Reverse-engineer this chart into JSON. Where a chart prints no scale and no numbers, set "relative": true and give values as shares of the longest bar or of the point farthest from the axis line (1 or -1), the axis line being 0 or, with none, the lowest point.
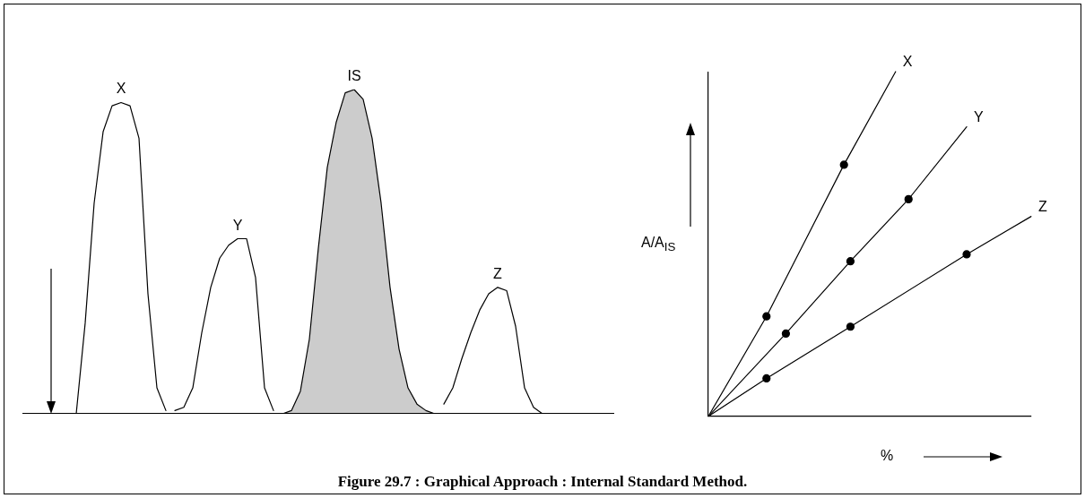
{
  "chart_data": [
    {
      "type": "line",
      "relative": true,
      "categories": [
        null,
        null,
        null,
        null,
        null,
        null,
        null,
        null,
        null,
        null,
        null,
        null,
        null,
        null,
        null,
        null,
        null,
        null,
        null,
        null,
        null,
        null,
        null,
        null,
        null,
        null,
        null,
        null,
        null,
        null,
        null,
        null,
        null,
        null,
        null,
        null,
        null,
        null,
        null,
        null,
        null,
        null,
        null,
        null,
        null,
        null,
        null,
        null,
        null,
        null,
        null,
        null,
        null,
        null,
        null,
        null,
        null,
        null,
        null,
        null,
        null,
        null,
        null,
        null,
        null,
        null,
        null
      ],
      "series": [
        {
          "name": "X",
          "type": "line",
          "color": "#000000",
          "values": [
            null,
            null,
            null,
            null,
            null,
            null,
            0,
            0.28,
            0.65,
            0.87,
            0.95,
            0.96,
            0.95,
            0.85,
            0.37,
            0.08,
            0.01,
            null,
            null,
            null,
            null,
            null,
            null,
            null,
            null,
            null,
            null,
            null,
            null,
            null,
            null,
            null,
            null,
            null,
            null,
            null,
            null,
            null,
            null,
            null,
            null,
            null,
            null,
            null,
            null,
            null,
            null,
            null,
            null,
            null,
            null,
            null,
            null,
            null,
            null,
            null,
            null,
            null,
            null,
            null,
            null,
            null,
            null,
            null,
            null,
            null,
            null
          ]
        },
        {
          "name": "Y",
          "type": "line",
          "color": "#000000",
          "values": [
            null,
            null,
            null,
            null,
            null,
            null,
            null,
            null,
            null,
            null,
            null,
            null,
            null,
            null,
            null,
            null,
            null,
            0.01,
            0.02,
            0.08,
            0.25,
            0.39,
            0.48,
            0.52,
            0.54,
            0.54,
            0.42,
            0.08,
            0.01,
            null,
            null,
            null,
            null,
            null,
            null,
            null,
            null,
            null,
            null,
            null,
            null,
            null,
            null,
            null,
            null,
            null,
            null,
            null,
            null,
            null,
            null,
            null,
            null,
            null,
            null,
            null,
            null,
            null,
            null,
            null,
            null,
            null,
            null,
            null,
            null,
            null,
            null
          ]
        },
        {
          "name": "IS",
          "type": "area",
          "color": "#000000",
          "values": [
            null,
            null,
            null,
            null,
            null,
            null,
            null,
            null,
            null,
            null,
            null,
            null,
            null,
            null,
            null,
            null,
            null,
            null,
            null,
            null,
            null,
            null,
            null,
            null,
            null,
            null,
            null,
            null,
            null,
            0,
            0.01,
            0.07,
            0.23,
            0.51,
            0.76,
            0.9,
            0.99,
            1,
            0.97,
            0.85,
            0.65,
            0.39,
            0.2,
            0.08,
            0.03,
            0.01,
            0,
            null,
            null,
            null,
            null,
            null,
            null,
            null,
            null,
            null,
            null,
            null,
            null,
            null,
            null,
            null,
            null,
            null,
            null,
            null,
            null
          ]
        },
        {
          "name": "Z",
          "type": "line",
          "color": "#000000",
          "values": [
            null,
            null,
            null,
            null,
            null,
            null,
            null,
            null,
            null,
            null,
            null,
            null,
            null,
            null,
            null,
            null,
            null,
            null,
            null,
            null,
            null,
            null,
            null,
            null,
            null,
            null,
            null,
            null,
            null,
            null,
            null,
            null,
            null,
            null,
            null,
            null,
            null,
            null,
            null,
            null,
            null,
            null,
            null,
            null,
            null,
            null,
            null,
            0.03,
            0.08,
            0.17,
            0.25,
            0.32,
            0.37,
            0.39,
            0.38,
            0.27,
            0.08,
            0.02,
            0,
            null,
            null,
            null,
            null,
            null,
            null,
            null,
            null
          ]
        }
      ]
    },
    {
      "type": "line",
      "relative": true,
      "ylabel": "A/A$_{IS}$",
      "xlabel": "%",
      "marker": "circle",
      "annotations": [
        "Figure 29.7 : Graphical Approach : Internal Standard Method."
      ],
      "categories": [
        null,
        null,
        null,
        null,
        null,
        null,
        null,
        null,
        null,
        null,
        null,
        null,
        null,
        null,
        null,
        null,
        null,
        null,
        null,
        null,
        null,
        null,
        null,
        null,
        null,
        null,
        null,
        null,
        null,
        null,
        null,
        null,
        null,
        null,
        null,
        null,
        null,
        null,
        null,
        null,
        null,
        null,
        null,
        null,
        null,
        null,
        null,
        null,
        null,
        null,
        null
      ],
      "series": [
        {
          "name": "X",
          "type": "line",
          "color": "#000000",
          "values": [
            0,
            null,
            null,
            null,
            null,
            null,
            null,
            null,
            null,
            0.29,
            null,
            null,
            null,
            null,
            null,
            null,
            null,
            null,
            null,
            null,
            null,
            0.73,
            null,
            null,
            null,
            null,
            null,
            null,
            null,
            1.0,
            null,
            null,
            null,
            null,
            null,
            null,
            null,
            null,
            null,
            null,
            null,
            null,
            null,
            null,
            null,
            null,
            null,
            null,
            null,
            null,
            null
          ]
        },
        {
          "name": "Y",
          "type": "line",
          "color": "#000000",
          "values": [
            0,
            null,
            null,
            null,
            null,
            null,
            null,
            null,
            null,
            null,
            null,
            null,
            0.24,
            null,
            null,
            null,
            null,
            null,
            null,
            null,
            null,
            null,
            0.45,
            null,
            null,
            null,
            null,
            null,
            null,
            null,
            null,
            0.63,
            null,
            null,
            null,
            null,
            null,
            null,
            null,
            null,
            0.84,
            null,
            null,
            null,
            null,
            null,
            null,
            null,
            null,
            null,
            null
          ]
        },
        {
          "name": "Z",
          "type": "line",
          "color": "#000000",
          "values": [
            0,
            null,
            null,
            null,
            null,
            null,
            null,
            null,
            null,
            0.11,
            null,
            null,
            null,
            null,
            null,
            null,
            null,
            null,
            null,
            null,
            null,
            null,
            0.26,
            null,
            null,
            null,
            null,
            null,
            null,
            null,
            null,
            null,
            null,
            null,
            null,
            null,
            null,
            null,
            null,
            null,
            0.47,
            null,
            null,
            null,
            null,
            null,
            null,
            null,
            null,
            null,
            0.58
          ]
        }
      ]
    }
  ]
}
